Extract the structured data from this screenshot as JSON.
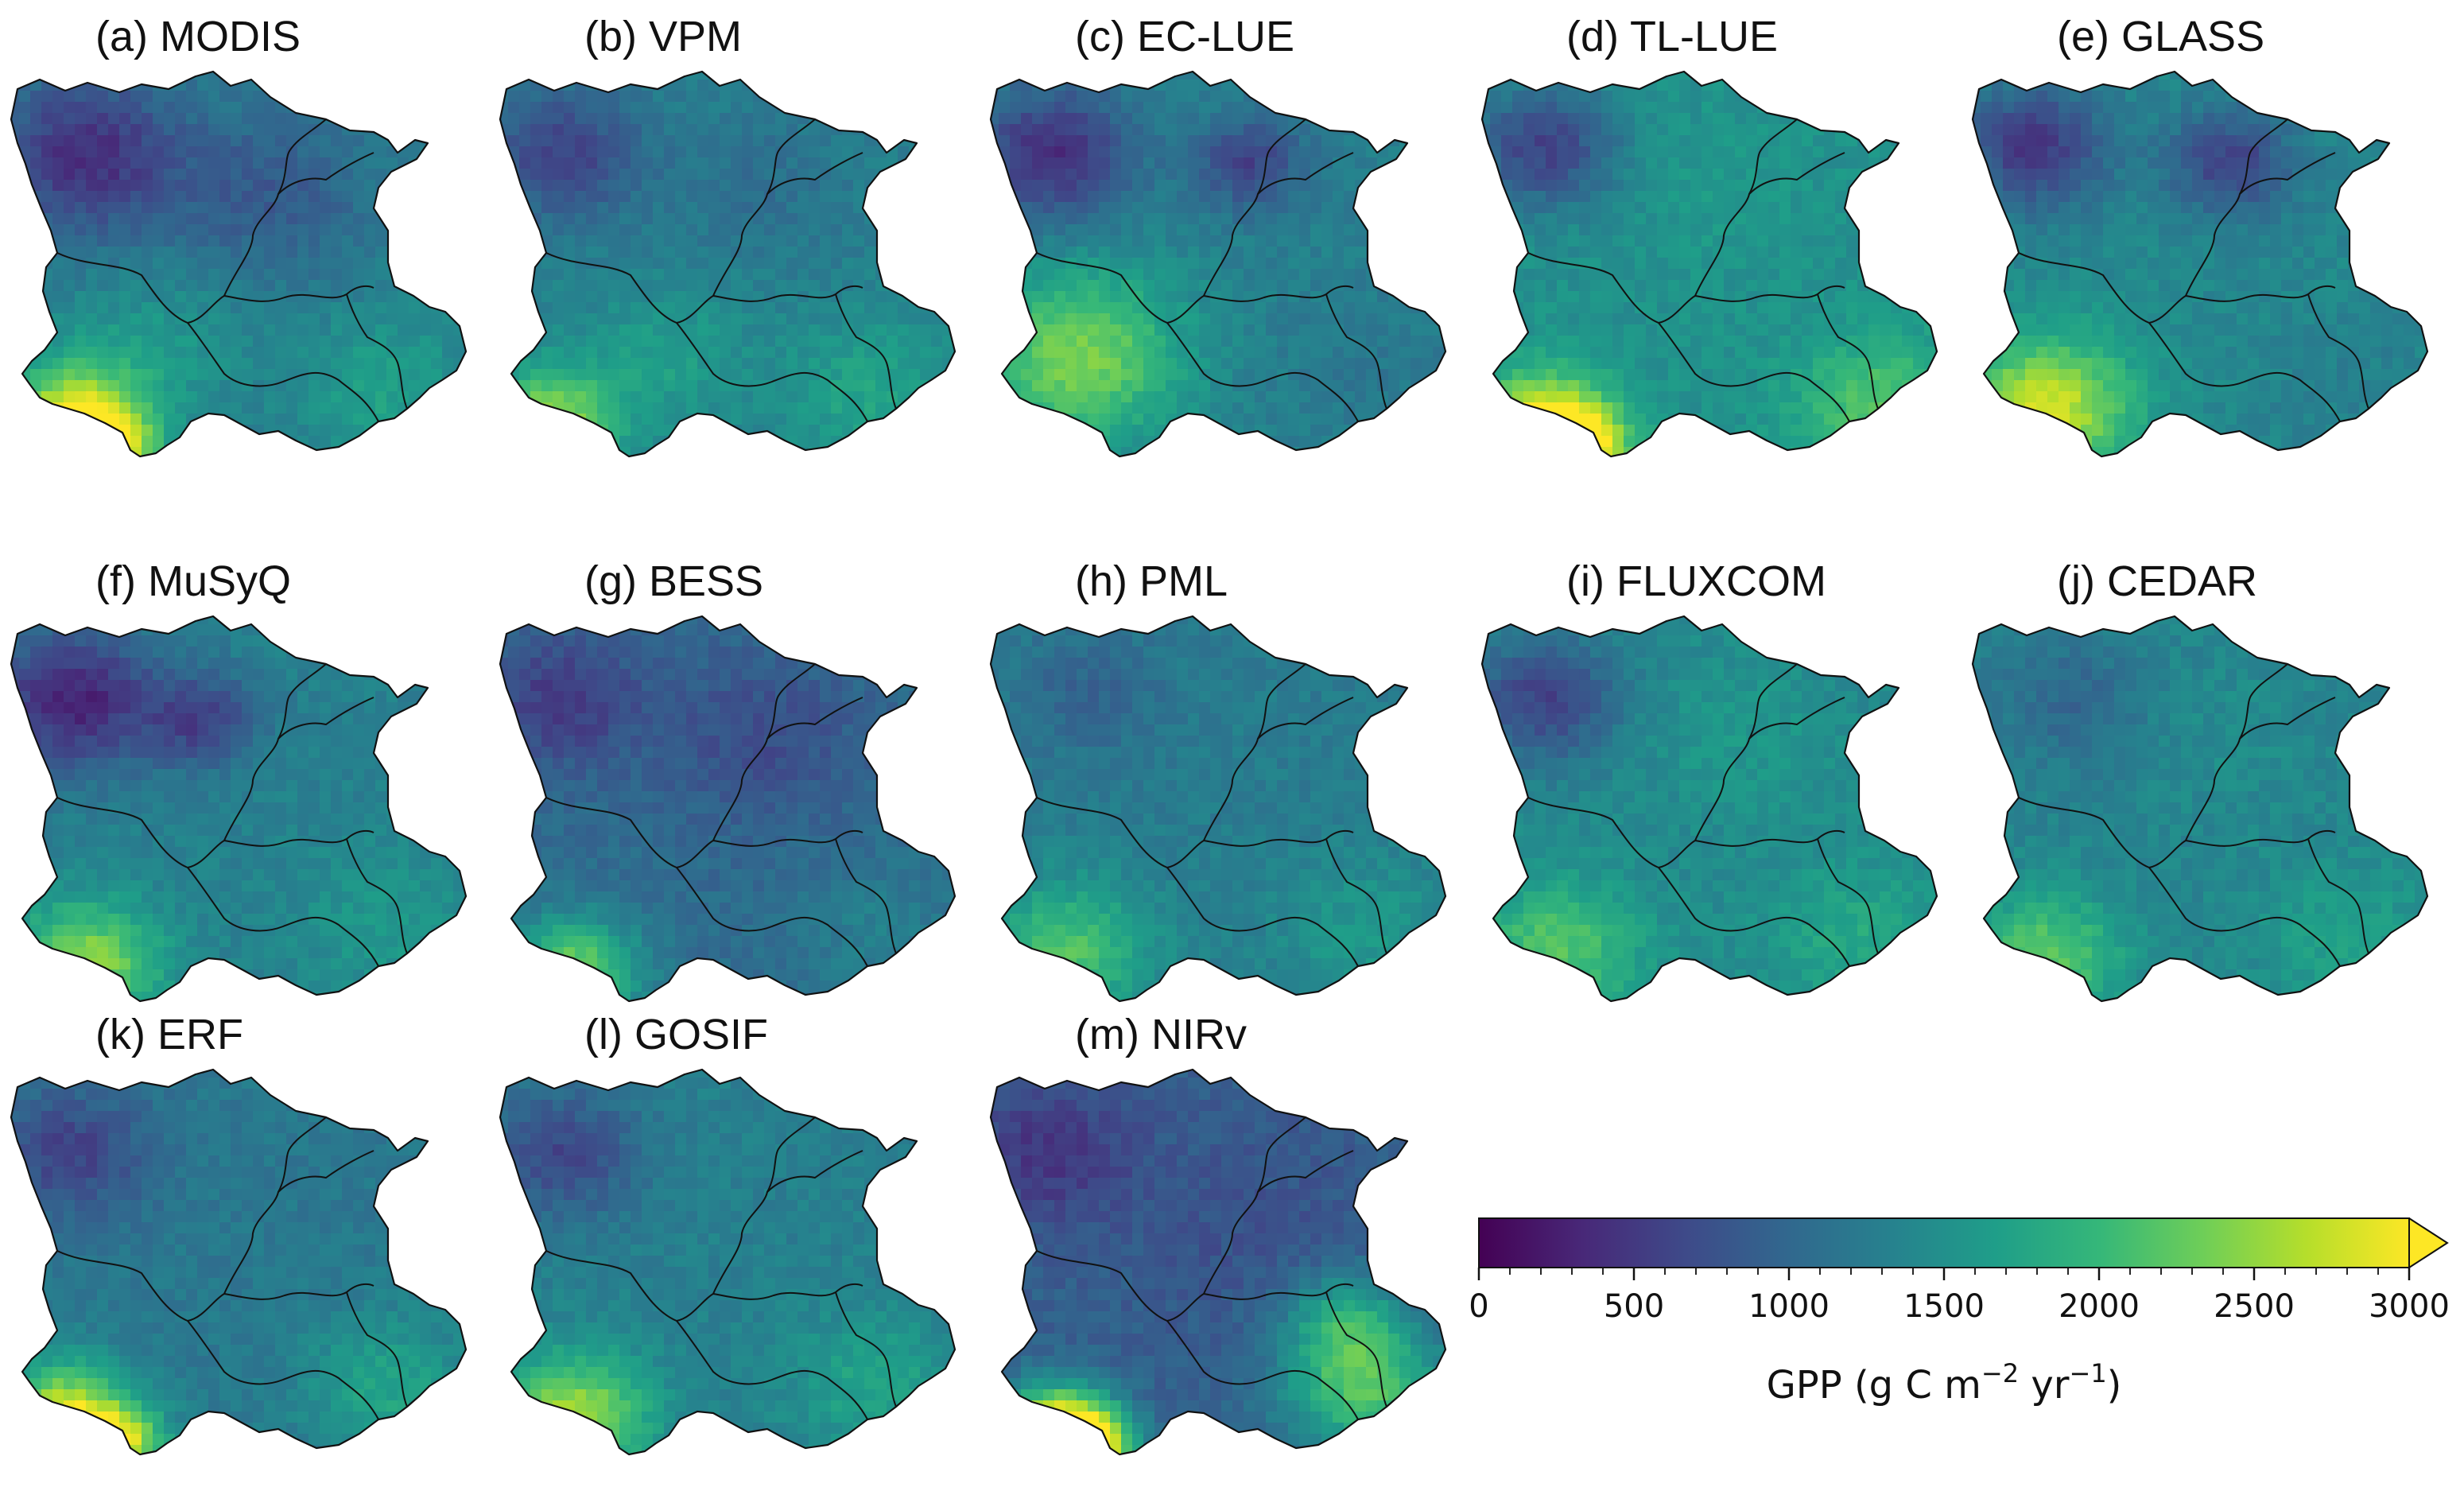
{
  "figure": {
    "panels": [
      {
        "label": "(a) MODIS",
        "pattern": "modis"
      },
      {
        "label": "(b) VPM",
        "pattern": "vpm"
      },
      {
        "label": "(c) EC-LUE",
        "pattern": "eclue"
      },
      {
        "label": "(d) TL-LUE",
        "pattern": "tllue"
      },
      {
        "label": "(e) GLASS",
        "pattern": "glass"
      },
      {
        "label": "(f) MuSyQ",
        "pattern": "musyq"
      },
      {
        "label": "(g) BESS",
        "pattern": "bess"
      },
      {
        "label": "(h) PML",
        "pattern": "pml"
      },
      {
        "label": "(i) FLUXCOM",
        "pattern": "fluxcom"
      },
      {
        "label": "(j) CEDAR",
        "pattern": "cedar"
      },
      {
        "label": "(k) ERF",
        "pattern": "erf"
      },
      {
        "label": "(l) GOSIF",
        "pattern": "gosif"
      },
      {
        "label": "(m) NIRv",
        "pattern": "nirv"
      }
    ],
    "colorbar": {
      "colormap": "viridis",
      "min": 0,
      "max": 3000,
      "extend": "max",
      "ticks": [
        "0",
        "500",
        "1000",
        "1500",
        "2000",
        "2500",
        "3000"
      ],
      "label_main": "GPP (g C m",
      "label_exp1": "−2",
      "label_mid": " yr",
      "label_exp2": "−1",
      "label_end": ")"
    },
    "colors": {
      "viridis": [
        "#440154",
        "#482878",
        "#3e4a89",
        "#31688e",
        "#26828e",
        "#1f9e89",
        "#35b779",
        "#6ece58",
        "#b5de2b",
        "#fde725"
      ],
      "boundary": "#111111"
    }
  }
}
